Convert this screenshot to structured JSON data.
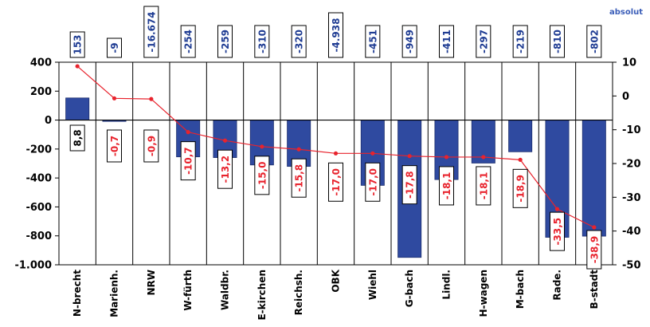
{
  "chart_data": {
    "type": "bar",
    "legend_text": "absolut",
    "categories": [
      "N-brecht",
      "Marienh.",
      "NRW",
      "W-fürth",
      "Waldbr.",
      "E-kirchen",
      "Reichsh.",
      "OBK",
      "Wiehl",
      "G-bach",
      "Lindl.",
      "H-wagen",
      "M-bach",
      "Rade.",
      "B-stadt"
    ],
    "bar_label_text": [
      "153",
      "-9",
      "-16.674",
      "-254",
      "-259",
      "-310",
      "-320",
      "-4.938",
      "-451",
      "-949",
      "-411",
      "-297",
      "-219",
      "-810",
      "-802"
    ],
    "bar_values": [
      153,
      -9,
      null,
      -254,
      -259,
      -310,
      -320,
      null,
      -451,
      -949,
      -411,
      -297,
      -219,
      -810,
      -802
    ],
    "line_values": [
      8.8,
      -0.7,
      -0.9,
      -10.7,
      -13.2,
      -15.0,
      -15.8,
      -17.0,
      -17.0,
      -17.8,
      -18.1,
      -18.1,
      -18.9,
      -33.5,
      -38.9
    ],
    "line_label_text": [
      "8,8",
      "-0,7",
      "-0,9",
      "-10,7",
      "-13,2",
      "-15,0",
      "-15,8",
      "-17,0",
      "-17,0",
      "-17,8",
      "-18,1",
      "-18,1",
      "-18,9",
      "-33,5",
      "-38,9"
    ],
    "y_left": {
      "min": -1000,
      "max": 400,
      "ticks": [
        400,
        200,
        0,
        -200,
        -400,
        -600,
        -800,
        -1000
      ],
      "tick_labels": [
        "400",
        "200",
        "0",
        "-200",
        "-400",
        "-600",
        "-800",
        "-1.000"
      ]
    },
    "y_right": {
      "min": -50,
      "max": 10,
      "ticks": [
        10,
        0,
        -10,
        -20,
        -30,
        -40,
        -50
      ],
      "tick_labels": [
        "10",
        "0",
        "-10",
        "-20",
        "-30",
        "-40",
        "-50"
      ]
    },
    "colors": {
      "bar": "#2f4aa0",
      "bar_edge": "#1d2f6e",
      "line": "#e8232d",
      "abs_text": "#1f3c93",
      "pct_text": "#e8232d"
    }
  }
}
